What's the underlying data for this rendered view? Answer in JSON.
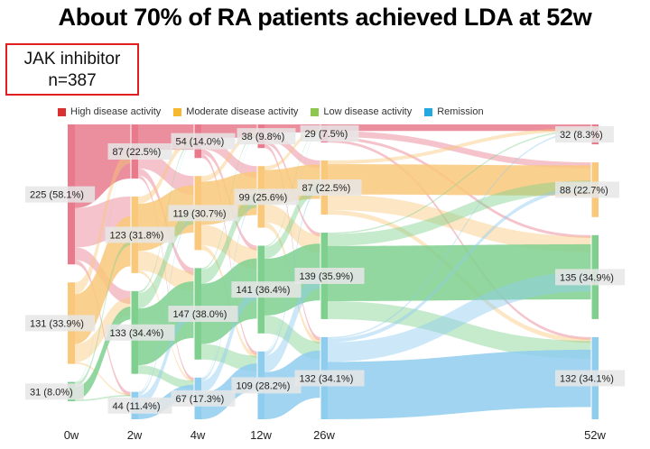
{
  "title": "About 70% of RA patients achieved LDA at 52w",
  "badge": {
    "line1": "JAK inhibitor",
    "line2": "n=387"
  },
  "chart_data": {
    "type": "sankey",
    "title": "About 70% of RA patients achieved LDA at 52w",
    "n": 387,
    "legend_position": "top",
    "categories": [
      "High disease activity",
      "Moderate disease activity",
      "Low disease activity",
      "Remission"
    ],
    "colors": {
      "High disease activity": "#e87a8c",
      "Moderate disease activity": "#f9c87a",
      "Low disease activity": "#7fd08f",
      "Remission": "#8fcdef"
    },
    "legend_colors": [
      "#d93030",
      "#f5b82e",
      "#8cc850",
      "#22aae0"
    ],
    "timepoints": [
      "0w",
      "2w",
      "4w",
      "12w",
      "26w",
      "52w"
    ],
    "nodes": [
      {
        "time": "0w",
        "values": [
          225,
          131,
          31,
          null
        ],
        "labels": [
          "225 (58.1%)",
          "131 (33.9%)",
          "31 (8.0%)",
          null
        ]
      },
      {
        "time": "2w",
        "values": [
          87,
          123,
          133,
          44
        ],
        "labels": [
          "87 (22.5%)",
          "123 (31.8%)",
          "133 (34.4%)",
          "44 (11.4%)"
        ]
      },
      {
        "time": "4w",
        "values": [
          54,
          119,
          147,
          67
        ],
        "labels": [
          "54 (14.0%)",
          "119 (30.7%)",
          "147 (38.0%)",
          "67 (17.3%)"
        ]
      },
      {
        "time": "12w",
        "values": [
          38,
          99,
          141,
          109
        ],
        "labels": [
          "38 (9.8%)",
          "99 (25.6%)",
          "141 (36.4%)",
          "109 (28.2%)"
        ]
      },
      {
        "time": "26w",
        "values": [
          29,
          87,
          139,
          132
        ],
        "labels": [
          "29 (7.5%)",
          "87 (22.5%)",
          "139 (35.9%)",
          "132 (34.1%)"
        ]
      },
      {
        "time": "52w",
        "values": [
          32,
          88,
          135,
          132
        ],
        "labels": [
          "32 (8.3%)",
          "88 (22.7%)",
          "135 (34.9%)",
          "132 (34.1%)"
        ]
      }
    ]
  }
}
